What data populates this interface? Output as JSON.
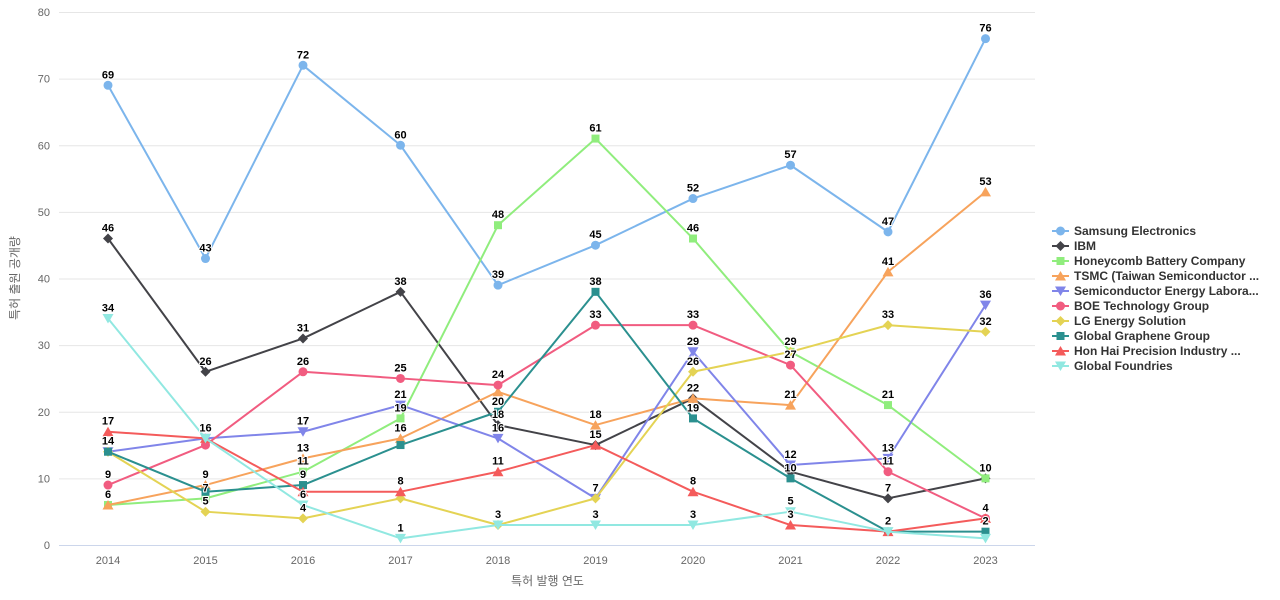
{
  "chart_data": {
    "type": "line",
    "title": "",
    "xlabel": "특허 발행 연도",
    "ylabel": "특허 출원 공개량",
    "categories": [
      "2014",
      "2015",
      "2016",
      "2017",
      "2018",
      "2019",
      "2020",
      "2021",
      "2022",
      "2023"
    ],
    "ylim": [
      0,
      80
    ],
    "ytick_step": 10,
    "grid": true,
    "legend_position": "right",
    "series": [
      {
        "name": "Samsung Electronics",
        "color": "#7cb5ec",
        "symbol": "circle",
        "values": [
          69,
          43,
          72,
          60,
          39,
          45,
          52,
          57,
          47,
          76
        ]
      },
      {
        "name": "IBM",
        "color": "#434348",
        "symbol": "diamond",
        "values": [
          46,
          26,
          31,
          38,
          18,
          15,
          22,
          11,
          7,
          10
        ]
      },
      {
        "name": "Honeycomb Battery Company",
        "color": "#90ed7d",
        "symbol": "square",
        "values": [
          6,
          7,
          11,
          19,
          48,
          61,
          46,
          29,
          21,
          10
        ]
      },
      {
        "name": "TSMC (Taiwan Semiconductor ...",
        "color": "#f7a35c",
        "symbol": "triangle",
        "values": [
          6,
          9,
          13,
          16,
          23,
          18,
          22,
          21,
          41,
          53
        ]
      },
      {
        "name": "Semiconductor Energy Labora...",
        "color": "#8085e9",
        "symbol": "triangle-down",
        "values": [
          14,
          16,
          17,
          21,
          16,
          7,
          29,
          12,
          13,
          36
        ]
      },
      {
        "name": "BOE Technology Group",
        "color": "#f15c80",
        "symbol": "circle",
        "values": [
          9,
          15,
          26,
          25,
          24,
          33,
          33,
          27,
          11,
          4
        ]
      },
      {
        "name": "LG Energy Solution",
        "color": "#e4d354",
        "symbol": "diamond",
        "values": [
          14,
          5,
          4,
          7,
          3,
          7,
          26,
          29,
          33,
          32
        ]
      },
      {
        "name": "Global Graphene Group",
        "color": "#2b908f",
        "symbol": "square",
        "values": [
          14,
          8,
          9,
          15,
          20,
          38,
          19,
          10,
          2,
          2
        ]
      },
      {
        "name": "Hon Hai Precision Industry ...",
        "color": "#f45b5b",
        "symbol": "triangle",
        "values": [
          17,
          16,
          8,
          8,
          11,
          15,
          8,
          3,
          2,
          4
        ]
      },
      {
        "name": "Global Foundries",
        "color": "#91e8e1",
        "symbol": "triangle-down",
        "values": [
          34,
          16,
          6,
          1,
          3,
          3,
          3,
          5,
          2,
          1
        ]
      }
    ],
    "style": {
      "grid_color": "#e6e6e6",
      "axis_line_color": "#ccd6eb",
      "tick_text_color": "#666666",
      "data_label_color": "#000000",
      "legend_text_color": "#333333",
      "background": "#ffffff"
    }
  }
}
